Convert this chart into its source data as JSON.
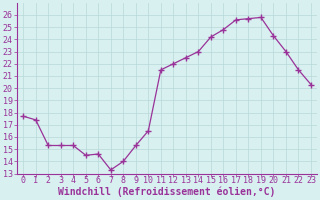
{
  "x": [
    0,
    1,
    2,
    3,
    4,
    5,
    6,
    7,
    8,
    9,
    10,
    11,
    12,
    13,
    14,
    15,
    16,
    17,
    18,
    19,
    20,
    21,
    22,
    23
  ],
  "y": [
    17.7,
    17.4,
    15.3,
    15.3,
    15.3,
    14.5,
    14.6,
    13.3,
    14.0,
    15.3,
    16.5,
    21.5,
    22.0,
    22.5,
    23.0,
    24.2,
    24.8,
    25.6,
    25.7,
    25.8,
    24.3,
    23.0,
    21.5,
    20.3
  ],
  "xlim": [
    -0.5,
    23.5
  ],
  "ylim": [
    13,
    27
  ],
  "yticks": [
    13,
    14,
    15,
    16,
    17,
    18,
    19,
    20,
    21,
    22,
    23,
    24,
    25,
    26
  ],
  "xticks": [
    0,
    1,
    2,
    3,
    4,
    5,
    6,
    7,
    8,
    9,
    10,
    11,
    12,
    13,
    14,
    15,
    16,
    17,
    18,
    19,
    20,
    21,
    22,
    23
  ],
  "xlabel": "Windchill (Refroidissement éolien,°C)",
  "line_color": "#993399",
  "marker": "+",
  "marker_size": 4,
  "bg_color": "#d9f0f0",
  "grid_color": "#b8d8d8",
  "tick_color": "#993399",
  "label_color": "#993399",
  "font_name": "monospace",
  "tick_fontsize": 6.0,
  "xlabel_fontsize": 7.0
}
